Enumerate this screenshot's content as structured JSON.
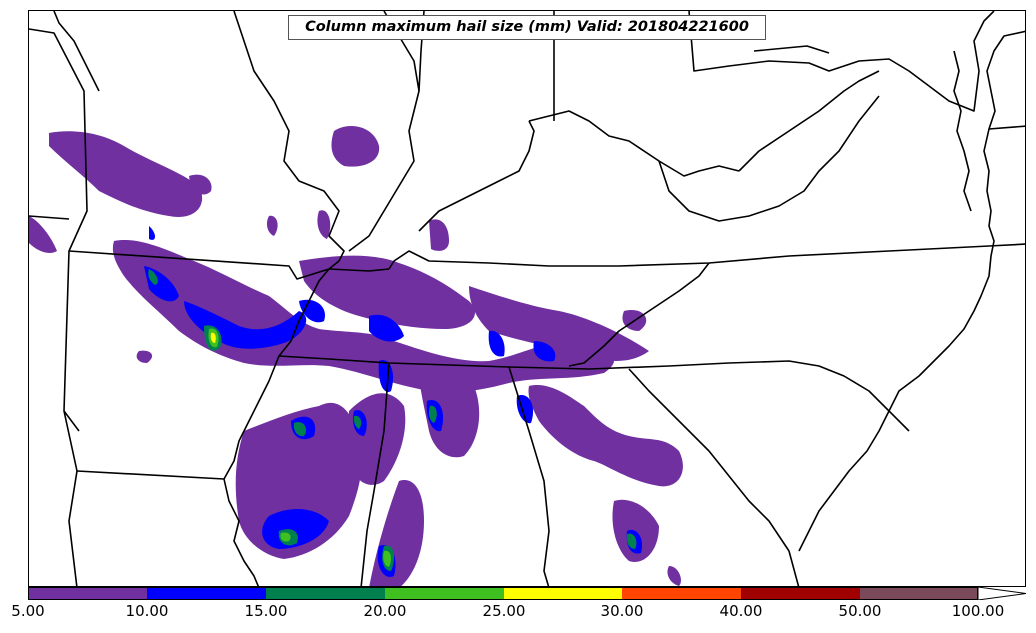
{
  "title": "Column maximum hail size (mm) Valid: 201804221600",
  "colorbar": {
    "ticks": [
      "5.00",
      "10.00",
      "15.00",
      "20.00",
      "25.00",
      "30.00",
      "40.00",
      "50.00",
      "100.00"
    ],
    "colors": [
      "#7030a0",
      "#0000ff",
      "#00804f",
      "#40c020",
      "#ffff00",
      "#ff4500",
      "#a00000",
      "#7a4a5a",
      "#ffffff"
    ]
  }
}
